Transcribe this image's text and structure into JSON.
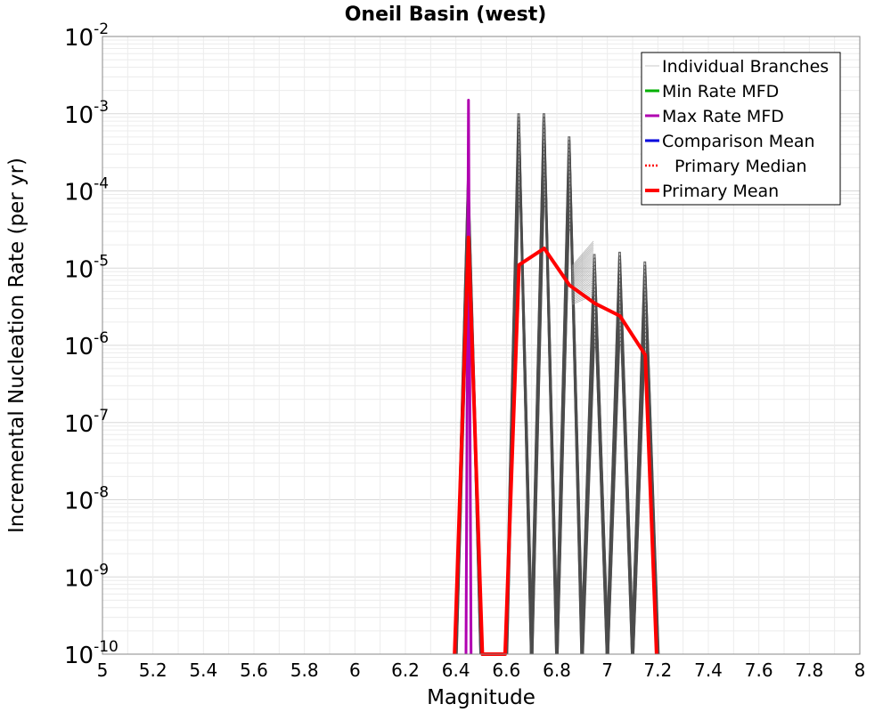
{
  "chart_data": {
    "type": "line",
    "title": "Oneil Basin (west)",
    "xlabel": "Magnitude",
    "ylabel": "Incremental Nucleation Rate (per yr)",
    "xlim": [
      5,
      8
    ],
    "ylim": [
      1e-10,
      0.01
    ],
    "yscale": "log",
    "grid": true,
    "x_ticks": [
      "5",
      "5.2",
      "5.4",
      "5.6",
      "5.8",
      "6",
      "6.2",
      "6.4",
      "6.6",
      "6.8",
      "7",
      "7.2",
      "7.4",
      "7.6",
      "7.8",
      "8"
    ],
    "y_ticks": [
      {
        "base": "10",
        "exp": "-10"
      },
      {
        "base": "10",
        "exp": "-9"
      },
      {
        "base": "10",
        "exp": "-8"
      },
      {
        "base": "10",
        "exp": "-7"
      },
      {
        "base": "10",
        "exp": "-6"
      },
      {
        "base": "10",
        "exp": "-5"
      },
      {
        "base": "10",
        "exp": "-4"
      },
      {
        "base": "10",
        "exp": "-3"
      },
      {
        "base": "10",
        "exp": "-2"
      }
    ],
    "legend_position": "top-right",
    "legend": [
      {
        "label": "Individual Branches",
        "color": "#c8c8c8",
        "style": "thin"
      },
      {
        "label": "Min Rate MFD",
        "color": "#00b000",
        "style": "solid"
      },
      {
        "label": "Max Rate MFD",
        "color": "#b000b0",
        "style": "solid"
      },
      {
        "label": "Comparison Mean",
        "color": "#0000dd",
        "style": "solid"
      },
      {
        "label": "Primary Median",
        "color": "#ff0000",
        "style": "dotted"
      },
      {
        "label": "Primary Mean",
        "color": "#ff0000",
        "style": "thick"
      }
    ],
    "series": [
      {
        "name": "Primary Mean",
        "color": "#ff0000",
        "x": [
          6.395,
          6.45,
          6.505,
          6.595,
          6.65,
          6.75,
          6.85,
          6.95,
          7.05,
          7.15,
          7.195
        ],
        "y": [
          1e-10,
          2.5e-05,
          1e-10,
          1e-10,
          1.1e-05,
          1.8e-05,
          6e-06,
          3.5e-06,
          2.4e-06,
          7.5e-07,
          1e-10
        ]
      },
      {
        "name": "Max Rate MFD",
        "color": "#b000b0",
        "x": [
          6.44,
          6.45,
          6.46
        ],
        "y": [
          1e-10,
          0.0015,
          1e-10
        ]
      }
    ],
    "branch_color": "#4d4d4d",
    "branch_spikes": [
      {
        "m": 6.45,
        "peak": 0.00014
      },
      {
        "m": 6.65,
        "peak": 0.001
      },
      {
        "m": 6.75,
        "peak": 0.001
      },
      {
        "m": 6.85,
        "peak": 0.0005
      },
      {
        "m": 6.95,
        "peak": 1.5e-05
      },
      {
        "m": 7.05,
        "peak": 1.6e-05
      },
      {
        "m": 7.15,
        "peak": 1.2e-05
      }
    ]
  }
}
